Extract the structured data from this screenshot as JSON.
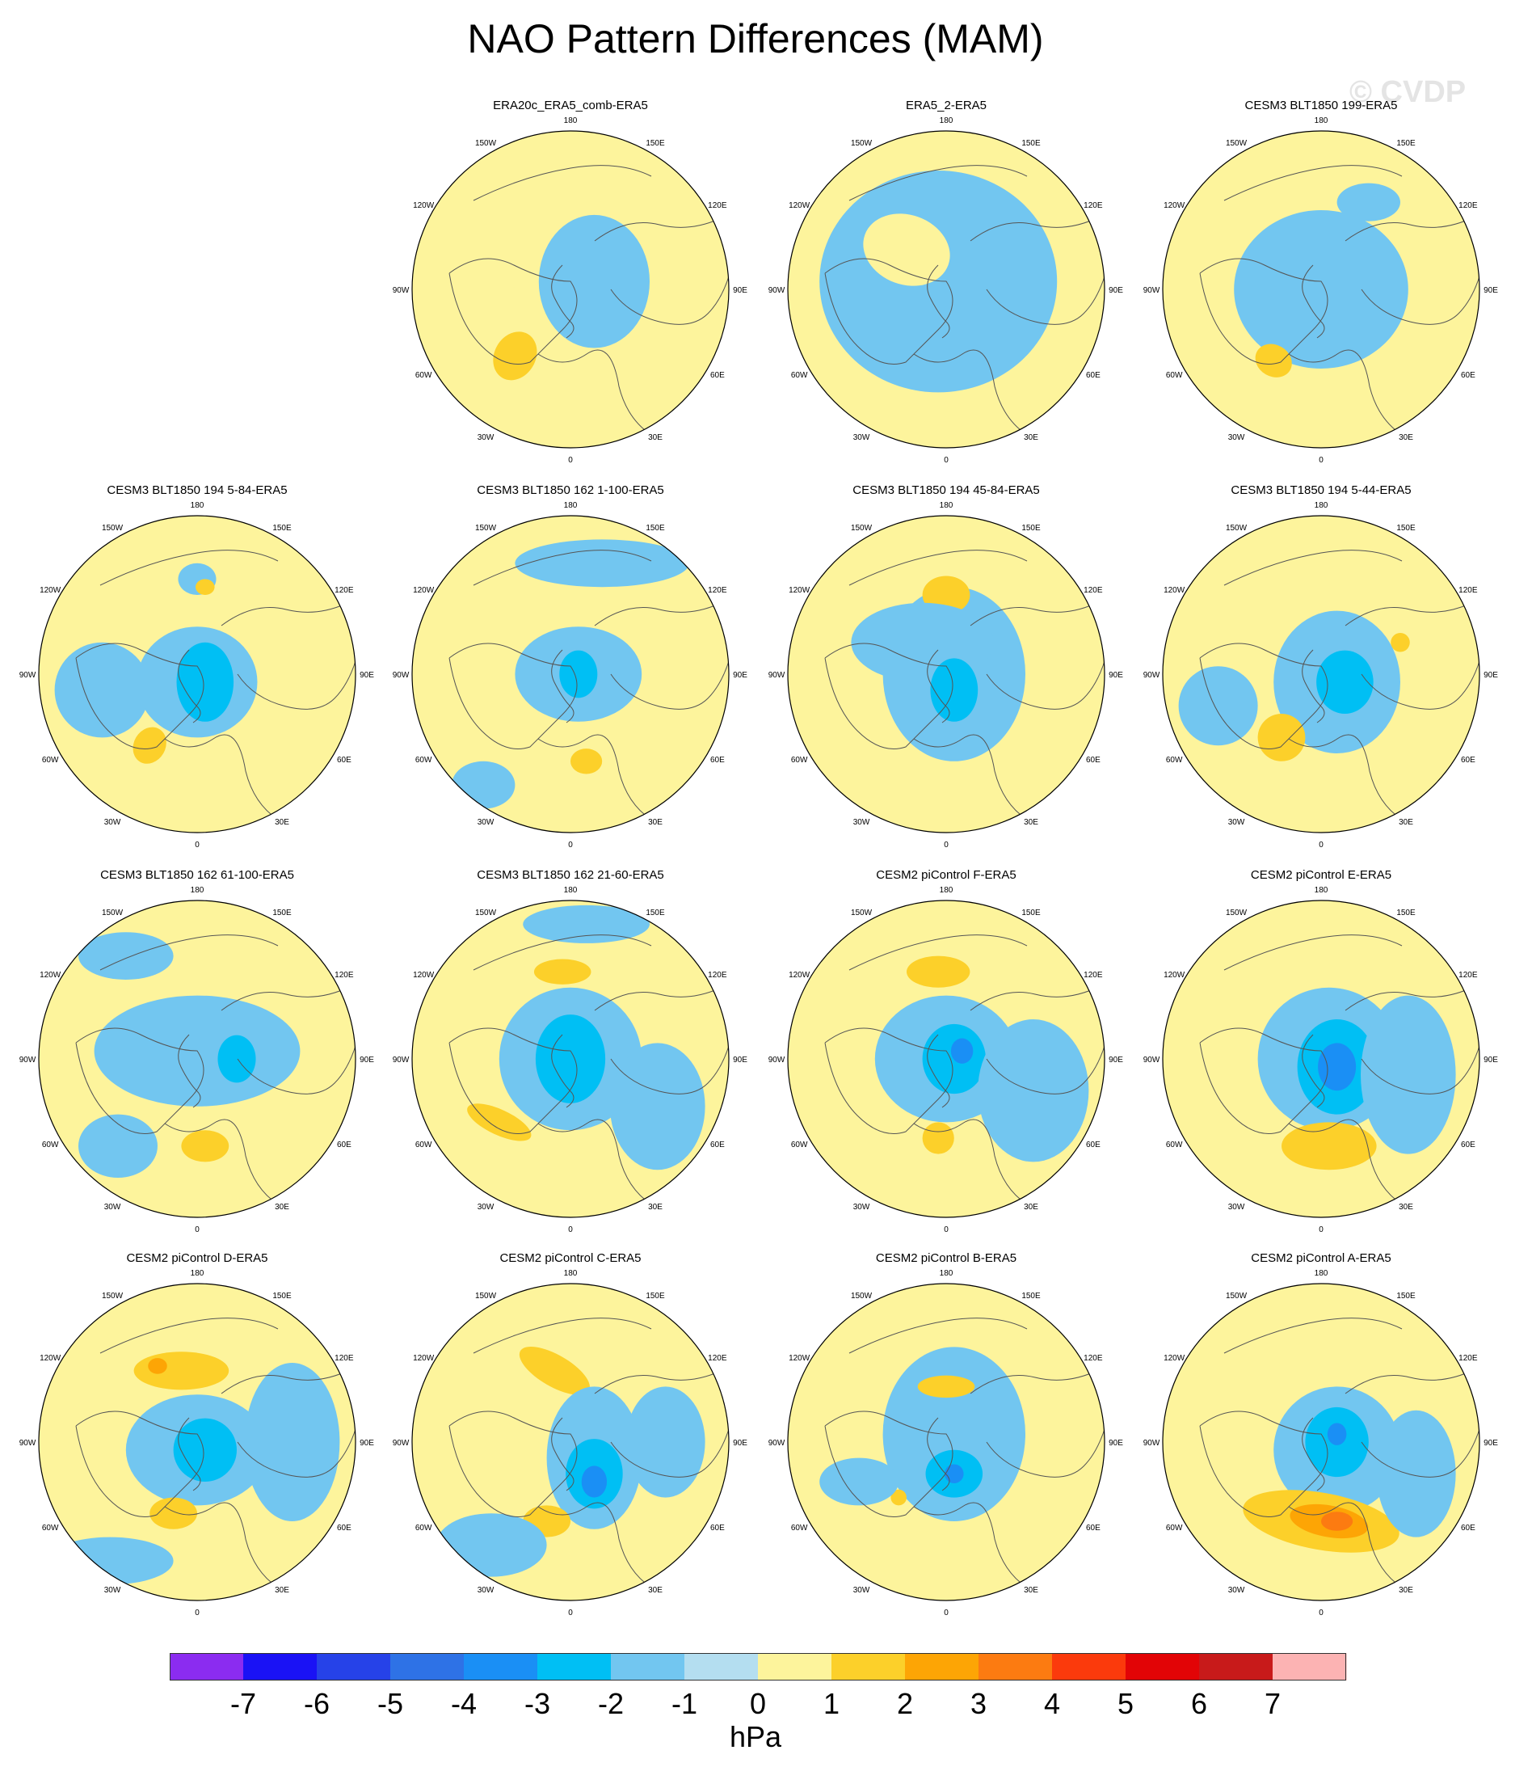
{
  "figure": {
    "title": "NAO Pattern Differences (MAM)",
    "watermark": "© CVDP"
  },
  "map": {
    "projection": "north-polar-stereographic",
    "longitude_labels": [
      "0",
      "30E",
      "60E",
      "90E",
      "120E",
      "150E",
      "180",
      "150W",
      "120W",
      "90W",
      "60W",
      "30W"
    ],
    "ocean_fill": "#b4def0",
    "land_line": "#555555"
  },
  "panels": [
    {
      "title": "",
      "row": 0,
      "col": 0,
      "empty": true
    },
    {
      "title": "ERA20c_ERA5_comb-ERA5",
      "row": 0,
      "col": 1,
      "blobs": [
        [
          -0.1,
          0.35,
          0.55,
          0.18,
          40,
          1
        ],
        [
          0.15,
          -0.05,
          0.35,
          0.42,
          0,
          -1
        ],
        [
          -0.35,
          0.42,
          0.13,
          0.16,
          30,
          2
        ]
      ]
    },
    {
      "title": "ERA5_2-ERA5",
      "row": 0,
      "col": 2,
      "blobs": [
        [
          -0.05,
          -0.05,
          0.75,
          0.7,
          0,
          -1
        ],
        [
          -0.25,
          -0.25,
          0.28,
          0.22,
          20,
          1
        ]
      ]
    },
    {
      "title": "CESM3 BLT1850 199-ERA5",
      "row": 0,
      "col": 3,
      "blobs": [
        [
          0.0,
          0.0,
          0.55,
          0.5,
          0,
          -1
        ],
        [
          -0.3,
          0.45,
          0.12,
          0.1,
          30,
          2
        ],
        [
          0.3,
          -0.55,
          0.2,
          0.12,
          0,
          -1
        ]
      ]
    },
    {
      "title": "CESM3 BLT1850 194 5-84-ERA5",
      "row": 1,
      "col": 0,
      "blobs": [
        [
          0.0,
          0.05,
          0.38,
          0.35,
          0,
          -1
        ],
        [
          0.05,
          0.05,
          0.18,
          0.25,
          0,
          -2
        ],
        [
          -0.3,
          0.45,
          0.1,
          0.12,
          30,
          2
        ],
        [
          -0.6,
          0.1,
          0.3,
          0.3,
          0,
          -1
        ],
        [
          0.0,
          -0.6,
          0.12,
          0.1,
          0,
          -1
        ],
        [
          0.05,
          -0.55,
          0.06,
          0.05,
          0,
          2
        ]
      ]
    },
    {
      "title": "CESM3 BLT1850 162 1-100-ERA5",
      "row": 1,
      "col": 1,
      "blobs": [
        [
          0.05,
          0.0,
          0.4,
          0.3,
          0,
          -1
        ],
        [
          0.05,
          0.0,
          0.12,
          0.15,
          0,
          -2
        ],
        [
          0.1,
          0.55,
          0.1,
          0.08,
          0,
          2
        ],
        [
          0.2,
          -0.7,
          0.55,
          0.15,
          0,
          -1
        ],
        [
          -0.55,
          0.7,
          0.2,
          0.15,
          0,
          -1
        ]
      ]
    },
    {
      "title": "CESM3 BLT1850 194 45-84-ERA5",
      "row": 1,
      "col": 2,
      "blobs": [
        [
          0.05,
          0.0,
          0.45,
          0.55,
          0,
          -1
        ],
        [
          0.0,
          -0.5,
          0.15,
          0.12,
          0,
          2
        ],
        [
          -0.15,
          -0.2,
          0.45,
          0.25,
          0,
          -1
        ],
        [
          0.05,
          0.1,
          0.15,
          0.2,
          0,
          -2
        ]
      ]
    },
    {
      "title": "CESM3 BLT1850 194 5-44-ERA5",
      "row": 1,
      "col": 3,
      "blobs": [
        [
          0.1,
          0.05,
          0.4,
          0.45,
          0,
          -1
        ],
        [
          0.15,
          0.05,
          0.18,
          0.2,
          0,
          -2
        ],
        [
          -0.25,
          0.4,
          0.15,
          0.15,
          30,
          2
        ],
        [
          0.5,
          -0.2,
          0.06,
          0.06,
          0,
          2
        ],
        [
          -0.65,
          0.2,
          0.25,
          0.25,
          0,
          -1
        ]
      ]
    },
    {
      "title": "CESM3 BLT1850 162 61-100-ERA5",
      "row": 2,
      "col": 0,
      "blobs": [
        [
          0.0,
          -0.05,
          0.65,
          0.35,
          0,
          -1
        ],
        [
          0.25,
          0.0,
          0.12,
          0.15,
          0,
          -2
        ],
        [
          0.05,
          0.55,
          0.15,
          0.1,
          0,
          2
        ],
        [
          -0.45,
          -0.65,
          0.3,
          0.15,
          0,
          -1
        ],
        [
          -0.5,
          0.55,
          0.25,
          0.2,
          0,
          -1
        ]
      ]
    },
    {
      "title": "CESM3 BLT1850 162 21-60-ERA5",
      "row": 2,
      "col": 1,
      "blobs": [
        [
          0.0,
          0.0,
          0.45,
          0.45,
          0,
          -1
        ],
        [
          0.0,
          0.0,
          0.22,
          0.28,
          0,
          -2
        ],
        [
          -0.45,
          0.4,
          0.22,
          0.08,
          25,
          2
        ],
        [
          -0.05,
          -0.55,
          0.18,
          0.08,
          0,
          2
        ],
        [
          0.55,
          0.3,
          0.3,
          0.4,
          0,
          -1
        ],
        [
          0.1,
          -0.85,
          0.4,
          0.12,
          0,
          -1
        ]
      ]
    },
    {
      "title": "CESM2 piControl F-ERA5",
      "row": 2,
      "col": 2,
      "blobs": [
        [
          0.0,
          0.0,
          0.45,
          0.4,
          0,
          -1
        ],
        [
          0.05,
          0.0,
          0.2,
          0.22,
          0,
          -2
        ],
        [
          0.1,
          -0.05,
          0.07,
          0.08,
          0,
          -3
        ],
        [
          -0.05,
          -0.55,
          0.2,
          0.1,
          0,
          2
        ],
        [
          -0.05,
          0.5,
          0.1,
          0.1,
          0,
          2
        ],
        [
          0.55,
          0.2,
          0.35,
          0.45,
          0,
          -1
        ]
      ]
    },
    {
      "title": "CESM2 piControl E-ERA5",
      "row": 2,
      "col": 3,
      "blobs": [
        [
          0.05,
          0.0,
          0.45,
          0.45,
          0,
          -1
        ],
        [
          0.1,
          0.05,
          0.25,
          0.3,
          0,
          -2
        ],
        [
          0.1,
          0.05,
          0.12,
          0.15,
          0,
          -3
        ],
        [
          0.05,
          0.55,
          0.3,
          0.15,
          0,
          2
        ],
        [
          0.55,
          0.1,
          0.3,
          0.5,
          0,
          -1
        ]
      ]
    },
    {
      "title": "CESM2 piControl D-ERA5",
      "row": 3,
      "col": 0,
      "blobs": [
        [
          -0.1,
          -0.45,
          0.3,
          0.12,
          0,
          2
        ],
        [
          -0.25,
          -0.48,
          0.06,
          0.05,
          0,
          3
        ],
        [
          0.0,
          0.05,
          0.45,
          0.35,
          0,
          -1
        ],
        [
          0.05,
          0.05,
          0.2,
          0.2,
          0,
          -2
        ],
        [
          -0.15,
          0.45,
          0.15,
          0.1,
          0,
          2
        ],
        [
          0.6,
          0.0,
          0.3,
          0.5,
          0,
          -1
        ],
        [
          -0.55,
          0.75,
          0.4,
          0.15,
          0,
          -1
        ]
      ]
    },
    {
      "title": "CESM2 piControl C-ERA5",
      "row": 3,
      "col": 1,
      "blobs": [
        [
          -0.1,
          -0.45,
          0.25,
          0.1,
          30,
          2
        ],
        [
          0.15,
          0.1,
          0.3,
          0.45,
          0,
          -1
        ],
        [
          0.15,
          0.2,
          0.18,
          0.22,
          0,
          -2
        ],
        [
          0.15,
          0.25,
          0.08,
          0.1,
          0,
          -3
        ],
        [
          -0.15,
          0.5,
          0.15,
          0.1,
          0,
          2
        ],
        [
          0.6,
          0.0,
          0.25,
          0.35,
          0,
          -1
        ],
        [
          -0.5,
          0.65,
          0.35,
          0.2,
          0,
          -1
        ]
      ]
    },
    {
      "title": "CESM2 piControl B-ERA5",
      "row": 3,
      "col": 2,
      "blobs": [
        [
          0.05,
          -0.05,
          0.45,
          0.55,
          0,
          -1
        ],
        [
          0.05,
          0.2,
          0.18,
          0.15,
          0,
          -2
        ],
        [
          0.05,
          0.2,
          0.06,
          0.06,
          0,
          -3
        ],
        [
          0.0,
          -0.35,
          0.18,
          0.07,
          0,
          2
        ],
        [
          -0.3,
          0.35,
          0.05,
          0.05,
          0,
          2
        ],
        [
          -0.55,
          0.25,
          0.25,
          0.15,
          0,
          -1
        ]
      ]
    },
    {
      "title": "CESM2 piControl A-ERA5",
      "row": 3,
      "col": 3,
      "blobs": [
        [
          0.1,
          0.05,
          0.4,
          0.4,
          0,
          -1
        ],
        [
          0.1,
          0.0,
          0.2,
          0.22,
          0,
          -2
        ],
        [
          0.1,
          -0.05,
          0.06,
          0.07,
          0,
          -3
        ],
        [
          0.0,
          0.5,
          0.5,
          0.18,
          10,
          2
        ],
        [
          0.05,
          0.5,
          0.25,
          0.1,
          10,
          3
        ],
        [
          0.1,
          0.5,
          0.1,
          0.06,
          0,
          4
        ],
        [
          0.6,
          0.2,
          0.25,
          0.4,
          0,
          -1
        ]
      ]
    }
  ],
  "colorbar": {
    "colors": [
      "#8b2cf0",
      "#1a12f5",
      "#2642e8",
      "#2e72e6",
      "#1a8ff5",
      "#00bff4",
      "#72c6f0",
      "#b4def0",
      "#fdf49c",
      "#fcd02a",
      "#fda505",
      "#fc7b11",
      "#fb3a0c",
      "#e20406",
      "#c81a1a",
      "#fcb3b3"
    ],
    "labels": [
      "-7",
      "-6",
      "-5",
      "-4",
      "-3",
      "-2",
      "-1",
      "0",
      "1",
      "2",
      "3",
      "4",
      "5",
      "6",
      "7"
    ],
    "units": "hPa"
  }
}
